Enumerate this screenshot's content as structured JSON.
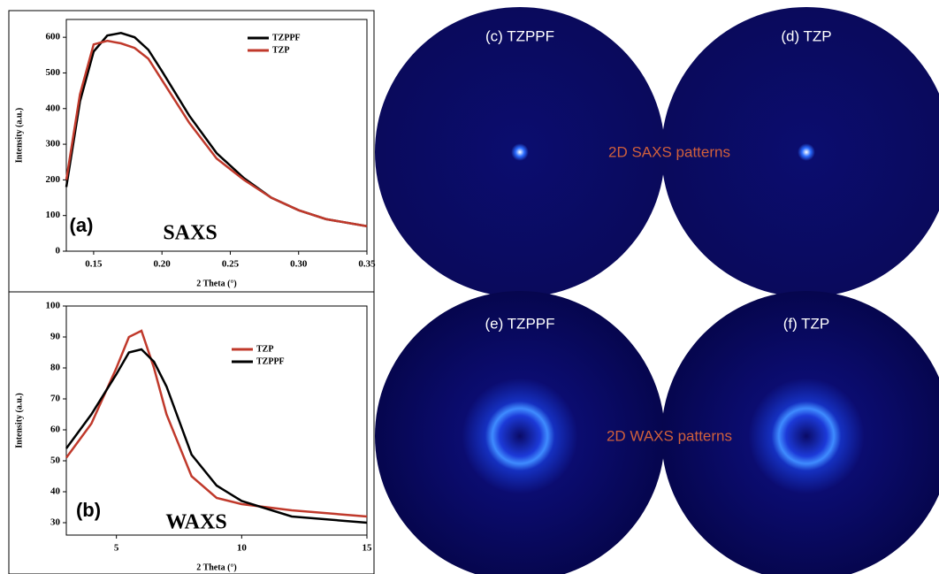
{
  "chart_data": [
    {
      "type": "line",
      "x_label": "2 Theta (°)",
      "y_label": "Intensity (a.u.)",
      "annotations": [
        "(a)",
        "SAXS"
      ],
      "x": [
        0.13,
        0.14,
        0.15,
        0.16,
        0.17,
        0.18,
        0.19,
        0.2,
        0.22,
        0.24,
        0.26,
        0.28,
        0.3,
        0.32,
        0.35
      ],
      "series": [
        {
          "name": "TZPPF",
          "color": "#000000",
          "values": [
            180,
            420,
            560,
            605,
            612,
            600,
            565,
            505,
            380,
            275,
            205,
            150,
            115,
            90,
            70
          ]
        },
        {
          "name": "TZP",
          "color": "#c0392b",
          "values": [
            200,
            440,
            580,
            590,
            583,
            570,
            540,
            480,
            360,
            260,
            200,
            150,
            115,
            90,
            70
          ]
        }
      ],
      "xlim": [
        0.13,
        0.35
      ],
      "xticks": [
        0.15,
        {
          "value": 0.2,
          "label": "0.20"
        },
        0.25,
        {
          "value": 0.3,
          "label": "0.30"
        },
        0.35
      ],
      "ylim": [
        0,
        650
      ],
      "yticks": [
        0,
        100,
        200,
        300,
        400,
        500,
        600
      ],
      "legend": "upper right"
    },
    {
      "type": "line",
      "x_label": "2 Theta (°)",
      "y_label": "Intensity (a.u.)",
      "annotations": [
        "(b)",
        "WAXS"
      ],
      "x": [
        3,
        4,
        5,
        5.5,
        6,
        6.5,
        7,
        8,
        9,
        10,
        12,
        15
      ],
      "series": [
        {
          "name": "TZP",
          "color": "#c0392b",
          "values": [
            51,
            62,
            80,
            90,
            92,
            80,
            65,
            45,
            38,
            36,
            34,
            32
          ]
        },
        {
          "name": "TZPPF",
          "color": "#000000",
          "values": [
            54,
            65,
            78,
            85,
            86,
            82,
            74,
            52,
            42,
            37,
            32,
            30
          ]
        }
      ],
      "xlim": [
        3,
        15
      ],
      "xticks": [
        5,
        10,
        15
      ],
      "ylim": [
        26,
        100
      ],
      "yticks": [
        30,
        40,
        50,
        60,
        70,
        80,
        90,
        100
      ],
      "legend": "upper right"
    }
  ],
  "patterns": {
    "labels": [
      "(c) TZPPF",
      "(d) TZP",
      "(e) TZPPF",
      "(f) TZP"
    ],
    "captions": [
      "2D SAXS patterns",
      "2D WAXS patterns"
    ]
  }
}
